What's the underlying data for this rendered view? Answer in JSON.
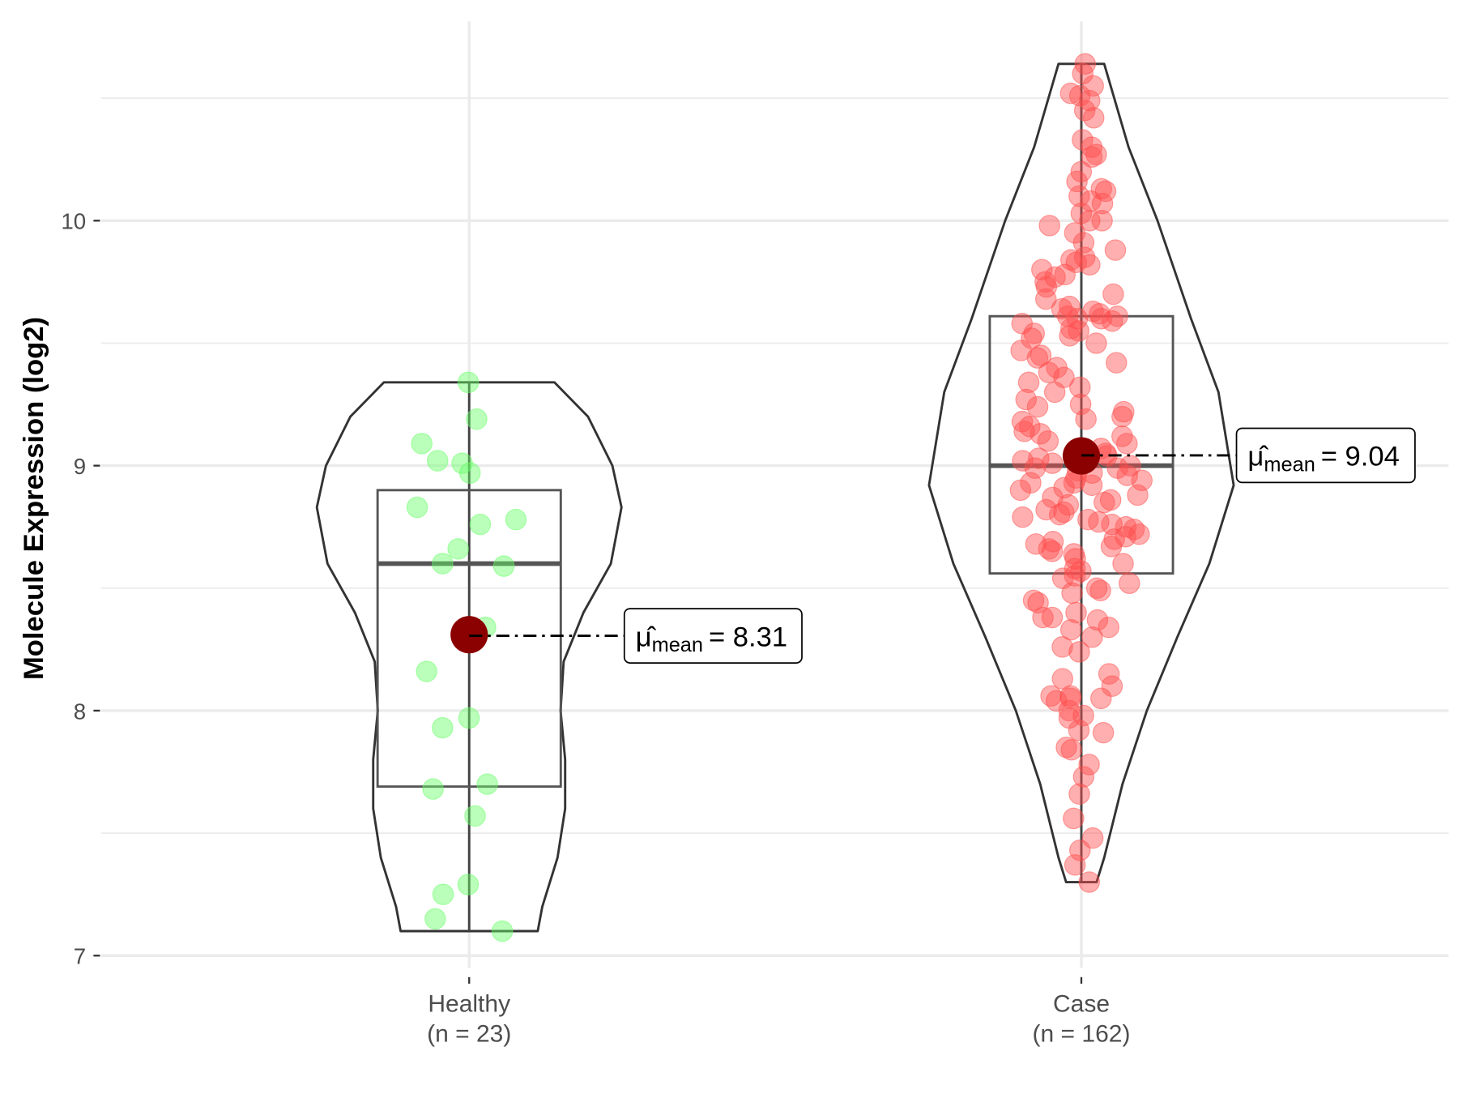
{
  "chart_data": {
    "type": "violin",
    "title": "",
    "xlabel": "",
    "ylabel": "Molecule Expression (log2)",
    "ylim": [
      6.95,
      10.95
    ],
    "yticks": [
      "7",
      "8",
      "9",
      "10"
    ],
    "grid": true,
    "colors": {
      "Healthy": "#66ff66",
      "Case": "#ff4d4d",
      "mean": "#8b0000",
      "outline": "#333333"
    },
    "groups": [
      {
        "name": "Healthy",
        "label_line1": "Healthy",
        "label_line2": "(n = 23)",
        "n": 23,
        "mean": 8.31,
        "mean_symbol": "μ̂",
        "mean_sub": "mean",
        "mean_text": "= 8.31",
        "box": {
          "min": 7.1,
          "q1": 7.69,
          "median": 8.6,
          "q3": 8.9,
          "max": 9.34
        },
        "density": [
          [
            9.34,
            0.56
          ],
          [
            9.2,
            0.78
          ],
          [
            9.0,
            0.94
          ],
          [
            8.83,
            1.0
          ],
          [
            8.6,
            0.93
          ],
          [
            8.4,
            0.75
          ],
          [
            8.2,
            0.62
          ],
          [
            8.0,
            0.6
          ],
          [
            7.8,
            0.63
          ],
          [
            7.6,
            0.63
          ],
          [
            7.4,
            0.58
          ],
          [
            7.2,
            0.48
          ],
          [
            7.1,
            0.45
          ]
        ],
        "points": [
          9.34,
          9.19,
          9.09,
          9.02,
          9.01,
          8.97,
          8.83,
          8.78,
          8.76,
          8.66,
          8.6,
          8.59,
          8.34,
          8.16,
          7.97,
          7.93,
          7.7,
          7.68,
          7.57,
          7.29,
          7.25,
          7.15,
          7.1
        ]
      },
      {
        "name": "Case",
        "label_line1": "Case",
        "label_line2": "(n = 162)",
        "n": 162,
        "mean": 9.04,
        "mean_symbol": "μ̂",
        "mean_sub": "mean",
        "mean_text": "= 9.04",
        "box": {
          "min": 7.3,
          "q1": 8.56,
          "median": 9.0,
          "q3": 9.61,
          "max": 10.64
        },
        "density": [
          [
            10.64,
            0.15
          ],
          [
            10.3,
            0.31
          ],
          [
            10.0,
            0.5
          ],
          [
            9.6,
            0.72
          ],
          [
            9.3,
            0.9
          ],
          [
            8.92,
            1.0
          ],
          [
            8.6,
            0.84
          ],
          [
            8.3,
            0.63
          ],
          [
            8.0,
            0.43
          ],
          [
            7.7,
            0.27
          ],
          [
            7.4,
            0.15
          ],
          [
            7.3,
            0.1
          ]
        ],
        "points": [
          7.3,
          7.37,
          7.43,
          7.48,
          7.56,
          7.66,
          7.73,
          7.78,
          7.84,
          7.85,
          7.91,
          7.92,
          7.97,
          7.98,
          8.0,
          8.04,
          8.05,
          8.05,
          8.06,
          8.06,
          8.1,
          8.13,
          8.15,
          8.24,
          8.26,
          8.3,
          8.33,
          8.34,
          8.37,
          8.38,
          8.38,
          8.4,
          8.44,
          8.45,
          8.48,
          8.49,
          8.5,
          8.52,
          8.54,
          8.55,
          8.57,
          8.58,
          8.6,
          8.62,
          8.64,
          8.65,
          8.66,
          8.67,
          8.68,
          8.69,
          8.7,
          8.71,
          8.72,
          8.74,
          8.75,
          8.76,
          8.77,
          8.78,
          8.79,
          8.8,
          8.81,
          8.82,
          8.84,
          8.85,
          8.86,
          8.87,
          8.88,
          8.9,
          8.91,
          8.92,
          8.93,
          8.93,
          8.94,
          8.95,
          8.96,
          8.97,
          8.98,
          8.99,
          8.99,
          9.0,
          9.01,
          9.02,
          9.03,
          9.04,
          9.05,
          9.07,
          9.09,
          9.1,
          9.12,
          9.13,
          9.14,
          9.16,
          9.18,
          9.19,
          9.2,
          9.22,
          9.24,
          9.25,
          9.27,
          9.3,
          9.32,
          9.34,
          9.36,
          9.38,
          9.4,
          9.42,
          9.44,
          9.45,
          9.47,
          9.5,
          9.52,
          9.53,
          9.54,
          9.55,
          9.56,
          9.58,
          9.59,
          9.6,
          9.6,
          9.61,
          9.61,
          9.62,
          9.63,
          9.64,
          9.65,
          9.68,
          9.7,
          9.73,
          9.75,
          9.77,
          9.78,
          9.8,
          9.82,
          9.83,
          9.84,
          9.85,
          9.88,
          9.91,
          9.95,
          9.98,
          10.0,
          10.0,
          10.03,
          10.07,
          10.08,
          10.1,
          10.12,
          10.13,
          10.16,
          10.2,
          10.26,
          10.27,
          10.3,
          10.33,
          10.42,
          10.45,
          10.49,
          10.51,
          10.52,
          10.55,
          10.6,
          10.64
        ]
      }
    ]
  }
}
